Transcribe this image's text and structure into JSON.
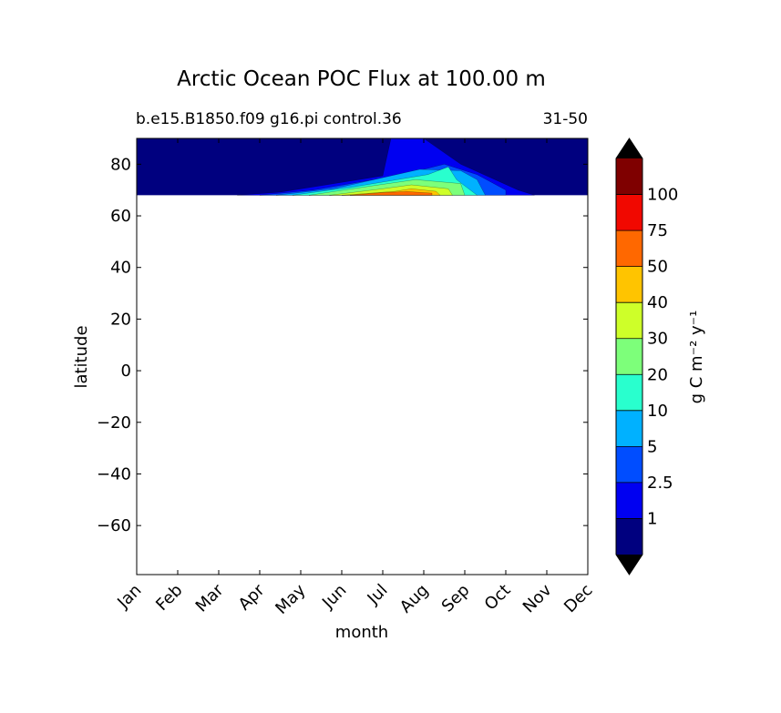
{
  "chart_data": {
    "type": "heatmap",
    "title": "Arctic Ocean POC Flux at 100.00 m",
    "subtitle_left": "b.e15.B1850.f09 g16.pi control.36",
    "subtitle_right": "31-50",
    "xlabel": "month",
    "ylabel": "latitude",
    "x_tick_labels": [
      "Jan",
      "Feb",
      "Mar",
      "Apr",
      "May",
      "Jun",
      "Jul",
      "Aug",
      "Sep",
      "Oct",
      "Nov",
      "Dec"
    ],
    "xlim": [
      0,
      11
    ],
    "ylim": [
      -79,
      90
    ],
    "y_ticks": [
      80,
      60,
      40,
      20,
      0,
      -20,
      -40,
      -60
    ],
    "y_tick_labels": [
      "80",
      "60",
      "40",
      "20",
      "0",
      "−20",
      "−40",
      "−60"
    ],
    "data_lat_range": [
      68,
      90
    ],
    "contour_levels": [
      1,
      2.5,
      5,
      10,
      20,
      30,
      40,
      50,
      75,
      100
    ],
    "colorbar": {
      "label": "g C m⁻² y⁻¹",
      "tick_labels": [
        "1",
        "2.5",
        "5",
        "10",
        "20",
        "30",
        "40",
        "50",
        "75",
        "100"
      ],
      "colors": [
        "#00007f",
        "#0000f1",
        "#004dff",
        "#00b1ff",
        "#29ffce",
        "#7dff7a",
        "#ceff29",
        "#ffc400",
        "#ff6800",
        "#f10800",
        "#7f0000"
      ],
      "extend": "both",
      "extend_colors": [
        "#000000",
        "#000000"
      ]
    },
    "regions": [
      {
        "level": 1,
        "color": "#0000f1",
        "x": [
          2.45,
          3.5,
          6.0,
          6.2,
          7.0,
          7.9,
          9.3,
          9.7
        ],
        "y": [
          68,
          69.2,
          75.5,
          90,
          90,
          80,
          70,
          68
        ]
      },
      {
        "level": 2.5,
        "color": "#004dff",
        "x": [
          3.0,
          4.3,
          6.5,
          7.5,
          8.3,
          9.0,
          9.0
        ],
        "y": [
          68,
          70.0,
          76.0,
          80.0,
          76.0,
          70.0,
          68
        ]
      },
      {
        "level": 5,
        "color": "#00b1ff",
        "x": [
          3.4,
          4.8,
          6.9,
          7.9,
          8.3,
          8.5
        ],
        "y": [
          68,
          70.5,
          78.0,
          77.5,
          74.0,
          68
        ]
      },
      {
        "level": 10,
        "color": "#29ffce",
        "x": [
          3.8,
          5.2,
          7.1,
          7.6,
          7.8,
          8.3
        ],
        "y": [
          68,
          71.0,
          76.0,
          79.0,
          74.0,
          68
        ]
      },
      {
        "level": 20,
        "color": "#7dff7a",
        "x": [
          4.2,
          5.7,
          6.8,
          7.9,
          8.0
        ],
        "y": [
          68,
          71.5,
          74.0,
          72.5,
          68
        ]
      },
      {
        "level": 30,
        "color": "#ceff29",
        "x": [
          4.7,
          6.0,
          6.7,
          7.6,
          7.7
        ],
        "y": [
          68,
          70.5,
          72.0,
          70.5,
          68
        ]
      },
      {
        "level": 40,
        "color": "#ffc400",
        "x": [
          5.0,
          6.3,
          6.7,
          7.3,
          7.4
        ],
        "y": [
          68,
          69.5,
          70.5,
          69.5,
          68
        ]
      },
      {
        "level": 50,
        "color": "#ff6800",
        "x": [
          5.2,
          6.0,
          6.6,
          7.2,
          7.2
        ],
        "y": [
          68,
          69.0,
          69.4,
          68.8,
          68
        ]
      }
    ]
  }
}
